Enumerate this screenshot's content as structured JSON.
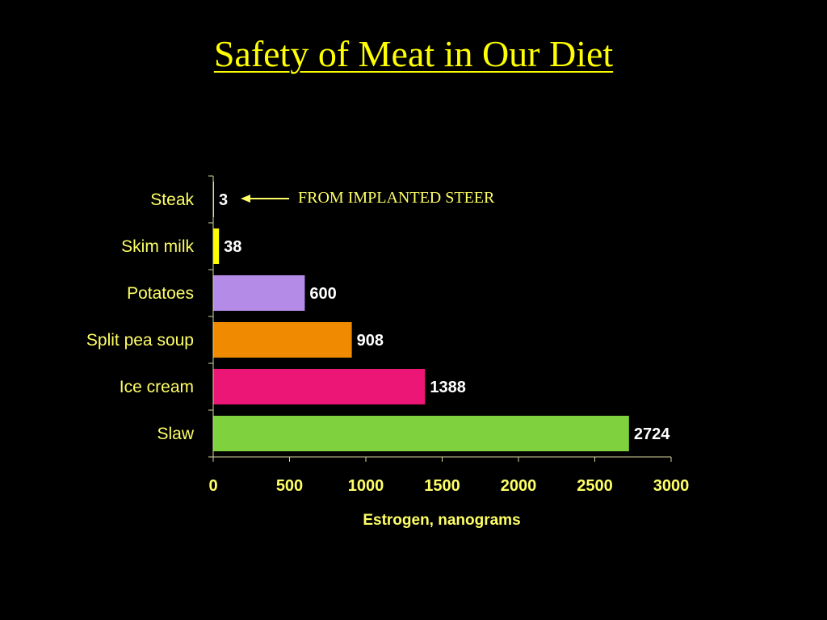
{
  "slide": {
    "title": "Safety of Meat in Our Diet"
  },
  "chart_data": {
    "type": "bar",
    "orientation": "horizontal",
    "categories": [
      "Steak",
      "Skim milk",
      "Potatoes",
      "Split pea soup",
      "Ice cream",
      "Slaw"
    ],
    "values": [
      3,
      38,
      600,
      908,
      1388,
      2724
    ],
    "bar_colors": [
      "#ffff00",
      "#ffff00",
      "#b48ce8",
      "#f08a00",
      "#ec1677",
      "#7fd13e"
    ],
    "xlabel": "Estrogen, nanograms",
    "ylabel": "",
    "xlim": [
      0,
      3000
    ],
    "xticks": [
      0,
      500,
      1000,
      1500,
      2000,
      2500,
      3000
    ],
    "grid": false,
    "annotation": {
      "text": "FROM IMPLANTED STEER",
      "target_category": "Steak"
    }
  },
  "colors": {
    "background": "#000000",
    "title": "#ffff00",
    "labels": "#ffff66",
    "value_labels": "#ffffff",
    "axis": "#d8d8a0"
  }
}
